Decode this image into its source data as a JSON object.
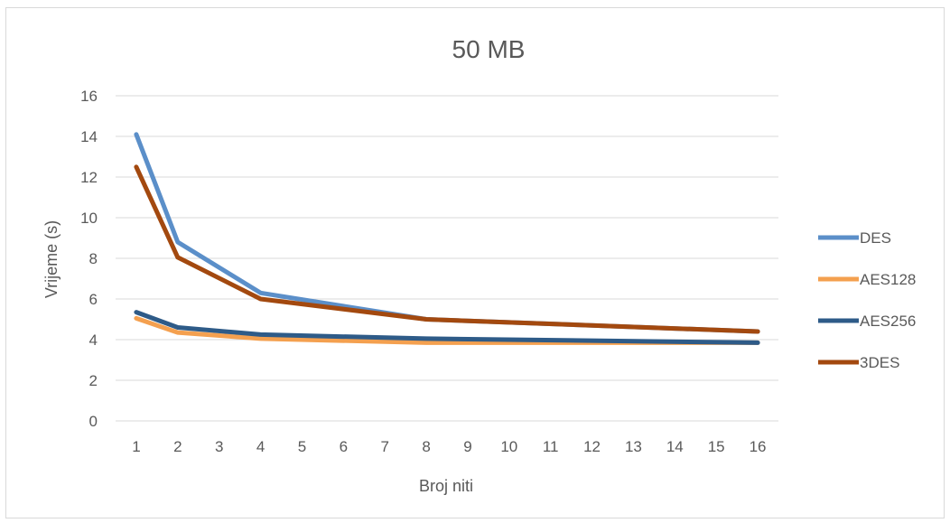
{
  "chart_data": {
    "type": "line",
    "title": "50 MB",
    "xlabel": "Broj niti",
    "ylabel": "Vrijeme (s)",
    "categories": [
      "1",
      "2",
      "3",
      "4",
      "5",
      "6",
      "7",
      "8",
      "9",
      "10",
      "11",
      "12",
      "13",
      "14",
      "15",
      "16"
    ],
    "x": [
      1,
      2,
      4,
      8,
      16
    ],
    "ylim": [
      0,
      16
    ],
    "yticks": [
      0,
      2,
      4,
      6,
      8,
      10,
      12,
      14,
      16
    ],
    "grid": true,
    "legend_position": "right",
    "series": [
      {
        "name": "DES",
        "color": "#5b8fc9",
        "values": [
          14.1,
          8.8,
          6.3,
          5.0,
          4.4
        ]
      },
      {
        "name": "AES128",
        "color": "#f4a04f",
        "values": [
          5.05,
          4.35,
          4.05,
          3.85,
          3.85
        ]
      },
      {
        "name": "AES256",
        "color": "#2e5b88",
        "values": [
          5.35,
          4.6,
          4.25,
          4.05,
          3.85
        ]
      },
      {
        "name": "3DES",
        "color": "#a3490f",
        "values": [
          12.5,
          8.05,
          6.0,
          5.0,
          4.4
        ]
      }
    ]
  }
}
